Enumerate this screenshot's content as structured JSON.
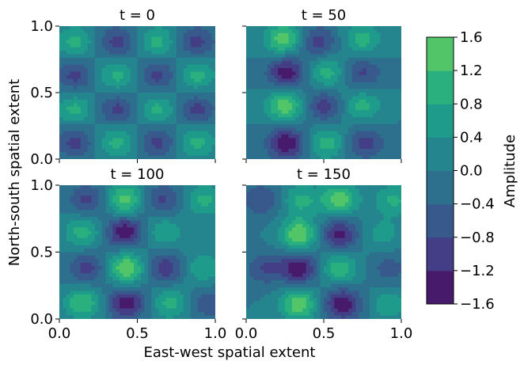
{
  "chart_data": {
    "type": "heatmap",
    "xlabel": "East-west spatial extent",
    "ylabel": "North-south spatial extent",
    "xticks": [
      "0.0",
      "0.5",
      "1.0"
    ],
    "yticks": [
      "0.0",
      "0.5",
      "1.0"
    ],
    "xlim": [
      0,
      1
    ],
    "ylim": [
      0,
      1
    ],
    "panels": [
      {
        "title": "t = 0",
        "extrema": [
          {
            "x": 0.1,
            "y": 0.88,
            "v": 0.95
          },
          {
            "x": 0.37,
            "y": 0.88,
            "v": -0.95
          },
          {
            "x": 0.63,
            "y": 0.88,
            "v": 0.95
          },
          {
            "x": 0.88,
            "y": 0.88,
            "v": -0.95
          },
          {
            "x": 0.1,
            "y": 0.63,
            "v": -0.95
          },
          {
            "x": 0.37,
            "y": 0.63,
            "v": 0.95
          },
          {
            "x": 0.63,
            "y": 0.63,
            "v": -0.95
          },
          {
            "x": 0.88,
            "y": 0.63,
            "v": 0.95
          },
          {
            "x": 0.1,
            "y": 0.37,
            "v": 0.95
          },
          {
            "x": 0.37,
            "y": 0.37,
            "v": -0.95
          },
          {
            "x": 0.63,
            "y": 0.37,
            "v": 0.95
          },
          {
            "x": 0.88,
            "y": 0.37,
            "v": -0.95
          },
          {
            "x": 0.1,
            "y": 0.13,
            "v": -0.95
          },
          {
            "x": 0.37,
            "y": 0.13,
            "v": 0.95
          },
          {
            "x": 0.63,
            "y": 0.13,
            "v": -0.95
          },
          {
            "x": 0.88,
            "y": 0.13,
            "v": 0.95
          }
        ]
      },
      {
        "title": "t = 50",
        "extrema": [
          {
            "x": 0.24,
            "y": 0.9,
            "v": 1.45
          },
          {
            "x": 0.46,
            "y": 0.88,
            "v": -1.0
          },
          {
            "x": 0.75,
            "y": 0.9,
            "v": 1.0
          },
          {
            "x": 0.26,
            "y": 0.65,
            "v": -1.5
          },
          {
            "x": 0.52,
            "y": 0.65,
            "v": 1.0
          },
          {
            "x": 0.75,
            "y": 0.65,
            "v": -0.9
          },
          {
            "x": 0.25,
            "y": 0.4,
            "v": 1.5
          },
          {
            "x": 0.5,
            "y": 0.4,
            "v": -1.0
          },
          {
            "x": 0.75,
            "y": 0.4,
            "v": 0.95
          },
          {
            "x": 0.26,
            "y": 0.12,
            "v": -1.55
          },
          {
            "x": 0.52,
            "y": 0.12,
            "v": 1.0
          },
          {
            "x": 0.77,
            "y": 0.12,
            "v": -0.95
          }
        ]
      },
      {
        "title": "t = 100",
        "extrema": [
          {
            "x": 0.18,
            "y": 0.89,
            "v": -0.9
          },
          {
            "x": 0.42,
            "y": 0.89,
            "v": 1.4
          },
          {
            "x": 0.66,
            "y": 0.89,
            "v": -0.9
          },
          {
            "x": 0.93,
            "y": 0.89,
            "v": 0.9
          },
          {
            "x": 0.15,
            "y": 0.65,
            "v": 1.0
          },
          {
            "x": 0.42,
            "y": 0.65,
            "v": -1.55
          },
          {
            "x": 0.67,
            "y": 0.65,
            "v": 0.8
          },
          {
            "x": 0.18,
            "y": 0.38,
            "v": -1.0
          },
          {
            "x": 0.43,
            "y": 0.38,
            "v": 1.6
          },
          {
            "x": 0.68,
            "y": 0.38,
            "v": -1.1
          },
          {
            "x": 0.92,
            "y": 0.38,
            "v": 0.8
          },
          {
            "x": 0.15,
            "y": 0.12,
            "v": 1.2
          },
          {
            "x": 0.43,
            "y": 0.12,
            "v": -1.45
          },
          {
            "x": 0.71,
            "y": 0.12,
            "v": 0.95
          },
          {
            "x": 0.95,
            "y": 0.12,
            "v": -0.7
          }
        ]
      },
      {
        "title": "t = 150",
        "extrema": [
          {
            "x": 0.1,
            "y": 0.89,
            "v": -0.8
          },
          {
            "x": 0.35,
            "y": 0.89,
            "v": 0.9
          },
          {
            "x": 0.6,
            "y": 0.89,
            "v": 1.45
          },
          {
            "x": 0.95,
            "y": 0.89,
            "v": 0.9
          },
          {
            "x": 0.34,
            "y": 0.63,
            "v": 1.6
          },
          {
            "x": 0.6,
            "y": 0.63,
            "v": -1.35
          },
          {
            "x": 0.88,
            "y": 0.63,
            "v": 0.6
          },
          {
            "x": 0.12,
            "y": 0.38,
            "v": -0.8
          },
          {
            "x": 0.34,
            "y": 0.38,
            "v": -1.55
          },
          {
            "x": 0.6,
            "y": 0.38,
            "v": 1.1
          },
          {
            "x": 0.92,
            "y": 0.38,
            "v": -0.6
          },
          {
            "x": 0.34,
            "y": 0.11,
            "v": 1.5
          },
          {
            "x": 0.62,
            "y": 0.11,
            "v": -1.55
          },
          {
            "x": 0.92,
            "y": 0.11,
            "v": 0.7
          }
        ]
      }
    ],
    "colorbar": {
      "label": "Amplitude",
      "levels": [
        -1.6,
        -1.2,
        -0.8,
        -0.4,
        0.0,
        0.4,
        0.8,
        1.2,
        1.6
      ],
      "tick_labels": [
        "1.6",
        "1.2",
        "0.8",
        "0.4",
        "0.0",
        "−0.4",
        "−0.8",
        "−1.2",
        "−1.6"
      ],
      "colors": [
        "#481a6c",
        "#433e85",
        "#38598c",
        "#2d708e",
        "#25858e",
        "#1e9b8a",
        "#2ab07f",
        "#52c569",
        "#86d549",
        "#c2df23"
      ]
    },
    "grid": false
  }
}
